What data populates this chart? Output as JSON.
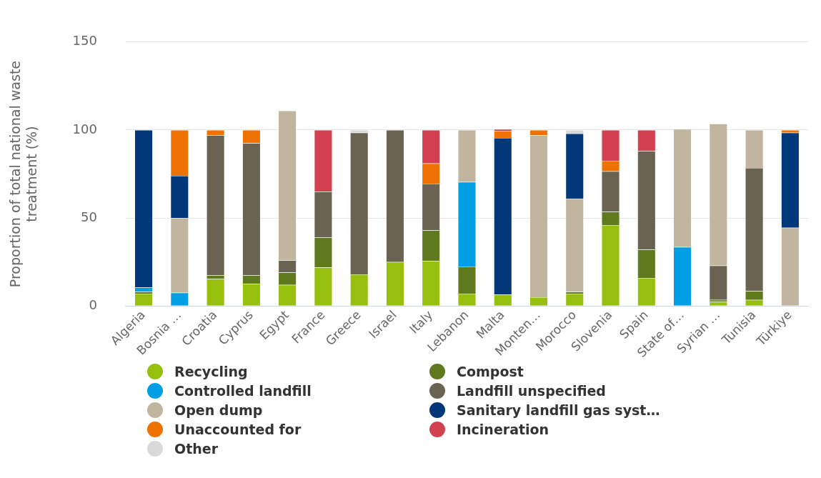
{
  "chart_data": {
    "type": "bar",
    "stacked": true,
    "ylabel": "Proportion of total national waste treatment (%)",
    "categories": [
      "Algeria",
      "Bosnia …",
      "Croatia",
      "Cyprus",
      "Egypt",
      "France",
      "Greece",
      "Israel",
      "Italy",
      "Lebanon",
      "Malta",
      "Monten…",
      "Morocco",
      "Slovenia",
      "Spain",
      "State of…",
      "Syrian …",
      "Tunisia",
      "Türkiye"
    ],
    "series": [
      {
        "name": "Recycling",
        "color": "#97bf0d",
        "values": [
          7,
          null,
          15.5,
          12.5,
          12,
          22,
          18,
          25,
          25.5,
          7,
          6.5,
          5,
          7,
          46,
          16,
          null,
          2.5,
          3.5,
          null
        ]
      },
      {
        "name": "Compost",
        "color": "#5f7a1e",
        "values": [
          1,
          null,
          2,
          5,
          7,
          17,
          null,
          null,
          17.5,
          15.5,
          null,
          null,
          1,
          7.5,
          16,
          null,
          1,
          5,
          null
        ]
      },
      {
        "name": "Controlled landfill",
        "color": "#009fe3",
        "values": [
          2.5,
          7.5,
          null,
          null,
          null,
          null,
          null,
          null,
          null,
          48,
          null,
          null,
          null,
          null,
          null,
          33.5,
          null,
          null,
          null
        ]
      },
      {
        "name": "Landfill unspecified",
        "color": "#6b6352",
        "values": [
          null,
          null,
          79.5,
          75,
          7,
          26,
          80.5,
          75,
          26.5,
          null,
          null,
          null,
          null,
          23,
          56,
          null,
          19.5,
          70,
          null
        ]
      },
      {
        "name": "Open dump",
        "color": "#c2b59f",
        "values": [
          null,
          42.5,
          null,
          null,
          85,
          null,
          null,
          null,
          null,
          29.5,
          null,
          92,
          53,
          null,
          null,
          67,
          80.5,
          21.5,
          44.5
        ]
      },
      {
        "name": "Sanitary landfill gas syst…",
        "color": "#00387a",
        "values": [
          89.5,
          24,
          null,
          null,
          null,
          null,
          null,
          null,
          null,
          null,
          89,
          null,
          37,
          null,
          null,
          null,
          null,
          null,
          54
        ]
      },
      {
        "name": "Unaccounted for",
        "color": "#ee7202",
        "values": [
          null,
          26,
          3,
          7.5,
          null,
          null,
          null,
          null,
          11.5,
          null,
          4,
          3,
          null,
          6,
          null,
          null,
          null,
          null,
          1.5
        ]
      },
      {
        "name": "Incineration",
        "color": "#d2414f",
        "values": [
          null,
          null,
          null,
          null,
          null,
          35,
          null,
          null,
          19,
          null,
          1,
          null,
          null,
          17.5,
          12,
          null,
          null,
          null,
          null
        ]
      },
      {
        "name": "Other",
        "color": "#d9d9d9",
        "values": [
          null,
          null,
          null,
          null,
          null,
          null,
          1.5,
          null,
          null,
          null,
          null,
          null,
          2,
          null,
          null,
          null,
          null,
          null,
          null
        ]
      }
    ],
    "ylim": [
      0,
      150
    ],
    "yticks": [
      0,
      50,
      100,
      150
    ],
    "grid": "y",
    "legend": "bottom",
    "marker": "circle"
  }
}
